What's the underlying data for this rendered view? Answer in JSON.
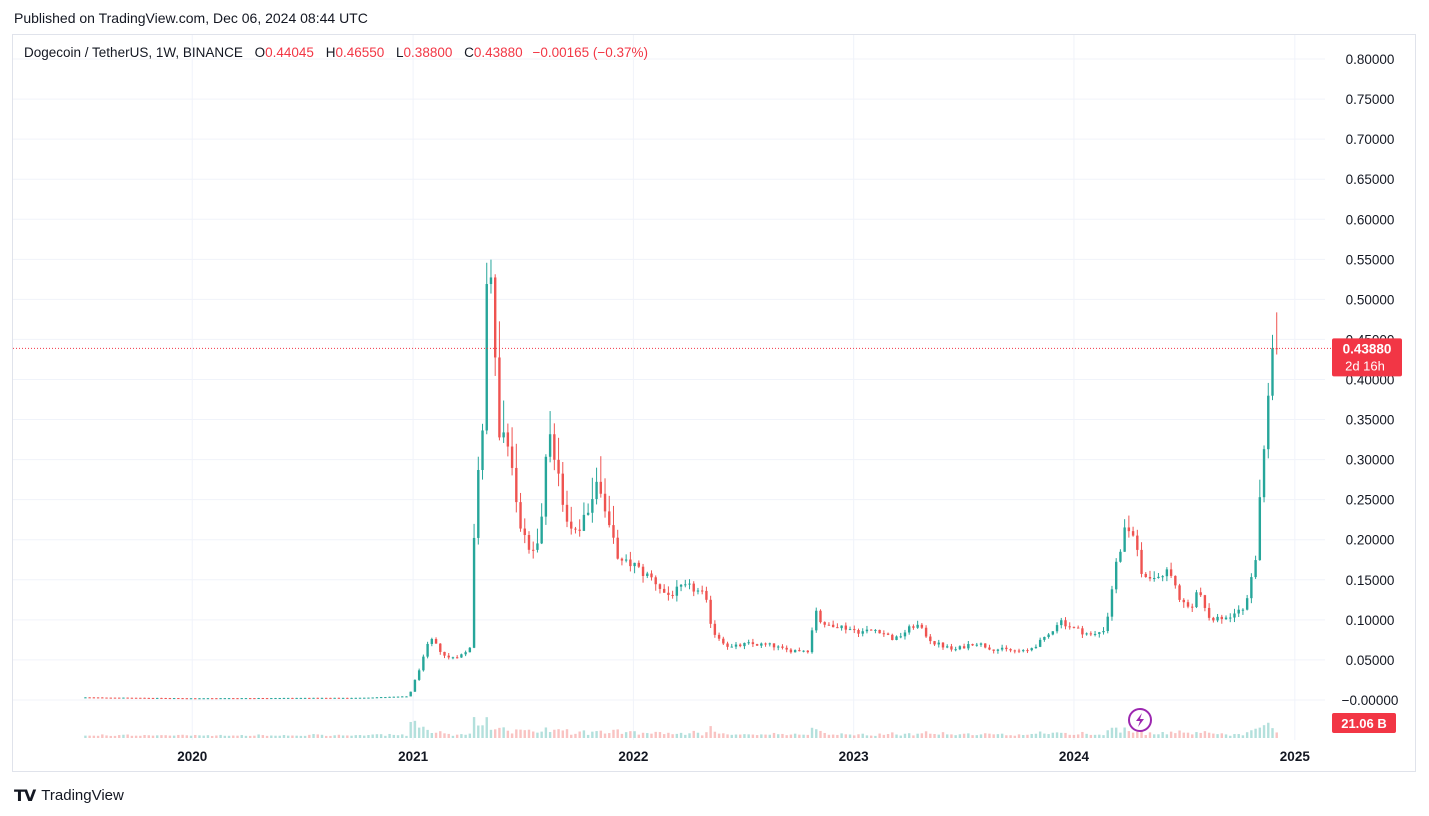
{
  "header": {
    "published": "Published on TradingView.com, Dec 06, 2024 08:44 UTC"
  },
  "legend": {
    "symbol": "Dogecoin / TetherUS, 1W, BINANCE",
    "o_label": "O",
    "o_value": "0.44045",
    "h_label": "H",
    "h_value": "0.46550",
    "l_label": "L",
    "l_value": "0.38800",
    "c_label": "C",
    "c_value": "0.43880",
    "change": "−0.00165 (−0.37%)"
  },
  "price_tag": {
    "price": "0.43880",
    "countdown": "2d 16h"
  },
  "volume_tag": "21.06 B",
  "footer": {
    "brand": "TradingView",
    "logo_text": "TV"
  },
  "colors": {
    "up": "#26a69a",
    "down": "#ef5350",
    "tag": "#f23645",
    "grid": "#f0f3fa",
    "text": "#131722"
  },
  "chart_data": {
    "type": "candlestick",
    "title": "Dogecoin / TetherUS, 1W, BINANCE",
    "y_axis_labels": [
      "0.80000",
      "0.75000",
      "0.70000",
      "0.65000",
      "0.60000",
      "0.55000",
      "0.50000",
      "0.45000",
      "0.40000",
      "0.35000",
      "0.30000",
      "0.25000",
      "0.20000",
      "0.15000",
      "0.10000",
      "0.05000",
      "−0.00000"
    ],
    "y_axis_values": [
      0.8,
      0.75,
      0.7,
      0.65,
      0.6,
      0.55,
      0.5,
      0.45,
      0.4,
      0.35,
      0.3,
      0.25,
      0.2,
      0.15,
      0.1,
      0.05,
      0.0
    ],
    "ylim": [
      -0.05,
      0.83
    ],
    "x_axis_labels": [
      "2020",
      "2021",
      "2022",
      "2023",
      "2024",
      "2025"
    ],
    "x_axis_dates": [
      "2020-01-01",
      "2021-01-01",
      "2022-01-01",
      "2023-01-01",
      "2024-01-01",
      "2025-01-01"
    ],
    "x_range": [
      "2019-03-10",
      "2025-02-20"
    ],
    "last_price": 0.4388,
    "grid": true,
    "price_points": [
      [
        "2019-07-08",
        0.0032
      ],
      [
        "2020-01-01",
        0.0021
      ],
      [
        "2020-06-15",
        0.0025
      ],
      [
        "2020-10-01",
        0.0026
      ],
      [
        "2020-12-25",
        0.0045
      ],
      [
        "2021-01-22",
        0.06
      ],
      [
        "2021-01-29",
        0.077
      ],
      [
        "2021-02-26",
        0.052
      ],
      [
        "2021-03-26",
        0.057
      ],
      [
        "2021-04-02",
        0.062
      ],
      [
        "2021-04-09",
        0.072
      ],
      [
        "2021-04-14",
        0.3
      ],
      [
        "2021-04-23",
        0.26
      ],
      [
        "2021-04-30",
        0.47
      ],
      [
        "2021-05-07",
        0.57
      ],
      [
        "2021-05-14",
        0.52
      ],
      [
        "2021-05-21",
        0.31
      ],
      [
        "2021-05-28",
        0.35
      ],
      [
        "2021-06-11",
        0.31
      ],
      [
        "2021-06-25",
        0.22
      ],
      [
        "2021-07-16",
        0.18
      ],
      [
        "2021-07-30",
        0.21
      ],
      [
        "2021-08-13",
        0.33
      ],
      [
        "2021-08-27",
        0.29
      ],
      [
        "2021-09-10",
        0.23
      ],
      [
        "2021-09-24",
        0.2
      ],
      [
        "2021-10-22",
        0.25
      ],
      [
        "2021-11-05",
        0.27
      ],
      [
        "2021-11-26",
        0.21
      ],
      [
        "2021-12-10",
        0.17
      ],
      [
        "2021-12-31",
        0.17
      ],
      [
        "2022-01-14",
        0.16
      ],
      [
        "2022-02-04",
        0.15
      ],
      [
        "2022-02-25",
        0.13
      ],
      [
        "2022-03-25",
        0.14
      ],
      [
        "2022-04-08",
        0.14
      ],
      [
        "2022-04-29",
        0.13
      ],
      [
        "2022-05-13",
        0.085
      ],
      [
        "2022-06-10",
        0.065
      ],
      [
        "2022-07-08",
        0.07
      ],
      [
        "2022-08-19",
        0.068
      ],
      [
        "2022-09-09",
        0.062
      ],
      [
        "2022-10-21",
        0.062
      ],
      [
        "2022-10-28",
        0.12
      ],
      [
        "2022-11-11",
        0.09
      ],
      [
        "2022-11-25",
        0.095
      ],
      [
        "2023-01-13",
        0.085
      ],
      [
        "2023-02-10",
        0.088
      ],
      [
        "2023-03-10",
        0.075
      ],
      [
        "2023-04-14",
        0.095
      ],
      [
        "2023-05-12",
        0.072
      ],
      [
        "2023-06-16",
        0.062
      ],
      [
        "2023-07-21",
        0.072
      ],
      [
        "2023-08-18",
        0.064
      ],
      [
        "2023-10-13",
        0.06
      ],
      [
        "2023-11-17",
        0.078
      ],
      [
        "2023-12-08",
        0.1
      ],
      [
        "2023-12-29",
        0.09
      ],
      [
        "2024-02-02",
        0.08
      ],
      [
        "2024-02-23",
        0.09
      ],
      [
        "2024-03-08",
        0.16
      ],
      [
        "2024-03-29",
        0.22
      ],
      [
        "2024-04-12",
        0.19
      ],
      [
        "2024-04-26",
        0.15
      ],
      [
        "2024-05-17",
        0.16
      ],
      [
        "2024-06-07",
        0.16
      ],
      [
        "2024-06-28",
        0.12
      ],
      [
        "2024-07-12",
        0.11
      ],
      [
        "2024-07-26",
        0.14
      ],
      [
        "2024-08-09",
        0.1
      ],
      [
        "2024-08-30",
        0.1
      ],
      [
        "2024-09-13",
        0.105
      ],
      [
        "2024-10-04",
        0.11
      ],
      [
        "2024-10-18",
        0.14
      ],
      [
        "2024-10-25",
        0.16
      ],
      [
        "2024-11-01",
        0.21
      ],
      [
        "2024-11-08",
        0.29
      ],
      [
        "2024-11-15",
        0.37
      ],
      [
        "2024-11-22",
        0.42
      ],
      [
        "2024-11-29",
        0.44
      ],
      [
        "2024-12-06",
        0.4388
      ]
    ],
    "volume_tag": "21.06 B"
  }
}
